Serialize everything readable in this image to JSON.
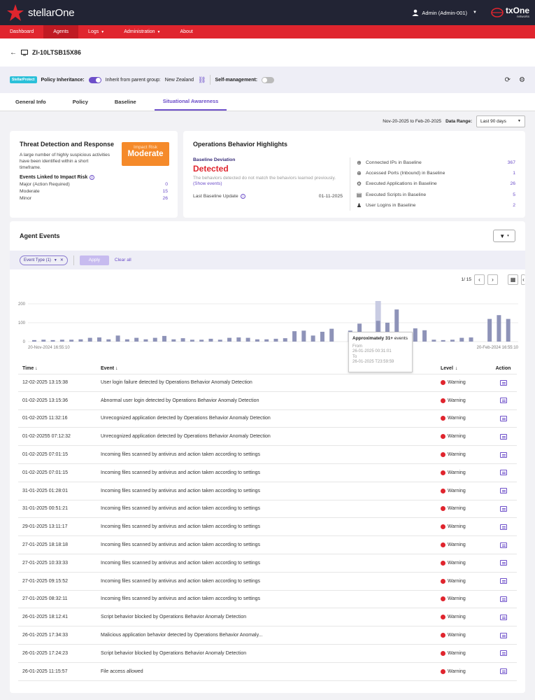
{
  "app": {
    "name": "stellarOne",
    "user": "Admin (Admin-001)",
    "partner_logo": "txOne",
    "partner_sub": "networks"
  },
  "nav": [
    {
      "label": "Dashboard",
      "caret": false,
      "active": false
    },
    {
      "label": "Agents",
      "caret": false,
      "active": true
    },
    {
      "label": "Logs",
      "caret": true,
      "active": false
    },
    {
      "label": "Administration",
      "caret": true,
      "active": false
    },
    {
      "label": "About",
      "caret": false,
      "active": false
    }
  ],
  "device": {
    "name": "ZI-10LTSB15X86"
  },
  "policy_bar": {
    "badge": "StellarProtect",
    "inheritance_label": "Policy Inheritance:",
    "inherit_text": "Inherit from parent group:",
    "group": "New Zealand",
    "self_mgmt_label": "Self-management:"
  },
  "tabs": [
    {
      "label": "General Info",
      "active": false
    },
    {
      "label": "Policy",
      "active": false
    },
    {
      "label": "Baseline",
      "active": false
    },
    {
      "label": "Situational Awareness",
      "active": true
    }
  ],
  "date_range": {
    "range_text": "Nov-20-2025 to Feb-20-2025",
    "label": "Data Range:",
    "selected": "Last 90 days"
  },
  "threat": {
    "title": "Threat Detection and Response",
    "description": "A large number of highly suspicious activities have been identified within a short timeframe.",
    "impact_label": "Impact Risk",
    "impact_value": "Moderate",
    "events_linked_label": "Events Linked to Impact Risk",
    "rows": [
      {
        "label": "Major (Action Required)",
        "value": "0"
      },
      {
        "label": "Moderate",
        "value": "15"
      },
      {
        "label": "Minor",
        "value": "26"
      }
    ]
  },
  "ops": {
    "title": "Operations Behavior Highlights",
    "deviation_label": "Baseline Deviation",
    "deviation_value": "Detected",
    "deviation_desc": "The behaviors detected do not match the behaviors learned previously.",
    "show_events": "(Show events)",
    "last_update_label": "Last Baseline Update",
    "last_update_value": "01-11-2025",
    "stats": [
      {
        "icon": "globe-icon",
        "label": "Connected IPs in Baseline",
        "value": "367"
      },
      {
        "icon": "globe-icon",
        "label": "Accessed Ports (Inbound) in Baseline",
        "value": "1"
      },
      {
        "icon": "gears-icon",
        "label": "Executed Applications in Baseline",
        "value": "26"
      },
      {
        "icon": "script-icon",
        "label": "Executed Scripts in Baseline",
        "value": "5"
      },
      {
        "icon": "user-icon",
        "label": "User Logins in Baseline",
        "value": "2"
      }
    ]
  },
  "events": {
    "title": "Agent Events",
    "chip": "Event Type (1)",
    "apply": "Apply",
    "clear_all": "Clear all",
    "page": "1/ 15",
    "columns": {
      "time": "Time",
      "event": "Event",
      "level": "Level",
      "action": "Action"
    },
    "rows": [
      {
        "time": "12-02-2025 13:15:38",
        "event": "User login failure detected by Operations Behavior Anomaly Detection",
        "level": "Warning"
      },
      {
        "time": "01-02-2025 13:15:36",
        "event": "Abnormal user login detected by Operations Behavior Anomaly Detection",
        "level": "Warning"
      },
      {
        "time": "01-02-2025 11:32:16",
        "event": "Unrecognized application detected by Operations Behavior Anomaly Detection",
        "level": "Warning"
      },
      {
        "time": "01-02-20255 07:12:32",
        "event": "Unrecognized application detected by Operations Behavior Anomaly Detection",
        "level": "Warning"
      },
      {
        "time": "01-02-2025 07:01:15",
        "event": "Incoming files scanned by antivirus and action taken according to settings",
        "level": "Warning"
      },
      {
        "time": "01-02-2025 07:01:15",
        "event": "Incoming files scanned by antivirus and action taken according to settings",
        "level": "Warning"
      },
      {
        "time": "31-01-2025 01:28:01",
        "event": "Incoming files scanned by antivirus and action taken according to settings",
        "level": "Warning"
      },
      {
        "time": "31-01-2025 00:51:21",
        "event": "Incoming files scanned by antivirus and action taken according to settings",
        "level": "Warning"
      },
      {
        "time": "29-01-2025 13:11:17",
        "event": "Incoming files scanned by antivirus and action taken according to settings",
        "level": "Warning"
      },
      {
        "time": "27-01-2025 18:18:18",
        "event": "Incoming files scanned by antivirus and action taken according to settings",
        "level": "Warning"
      },
      {
        "time": "27-01-2025 10:33:33",
        "event": "Incoming files scanned by antivirus and action taken according to settings",
        "level": "Warning"
      },
      {
        "time": "27-01-2025 09:15:52",
        "event": "Incoming files scanned by antivirus and action taken according to settings",
        "level": "Warning"
      },
      {
        "time": "27-01-2025 08:32:11",
        "event": "Incoming files scanned by antivirus and action taken according to settings",
        "level": "Warning"
      },
      {
        "time": "26-01-2025 18:12:41",
        "event": "Script behavior blocked by Operations Behavior Anomaly Detection",
        "level": "Warning"
      },
      {
        "time": "26-01-2025 17:34:33",
        "event": "Malicious application behavior detected by Operations Behavior Anomaly...",
        "level": "Warning"
      },
      {
        "time": "26-01-2025 17:24:23",
        "event": "Script behavior blocked by Operations Behavior Anomaly Detection",
        "level": "Warning"
      },
      {
        "time": "26-01-2025 11:15:57",
        "event": "File access allowed",
        "level": "Warning"
      }
    ],
    "tooltip": {
      "title_bold": "Approximately 31+",
      "title_rest": " events",
      "from_label": "From",
      "from": "26-01-2025 00:31:01",
      "to_label": "To",
      "to": "26-01-2025 T23:59:59"
    }
  },
  "chart_data": {
    "type": "bar",
    "x_start_label": "20-Nov-2024 16:55:10",
    "x_end_label": "20-Feb-2024 16:55:10",
    "yticks": [
      0,
      100,
      200
    ],
    "ylim": [
      0,
      200
    ],
    "highlight_index": 37,
    "values": [
      8,
      10,
      8,
      10,
      10,
      12,
      20,
      22,
      12,
      32,
      12,
      20,
      12,
      20,
      30,
      12,
      18,
      10,
      10,
      15,
      10,
      20,
      22,
      20,
      12,
      12,
      15,
      18,
      55,
      58,
      32,
      52,
      68,
      0,
      58,
      95,
      0,
      110,
      100,
      170,
      0,
      70,
      60,
      10,
      8,
      10,
      20,
      22,
      0,
      120,
      140,
      120
    ]
  },
  "colors": {
    "brand_red": "#e0252e",
    "accent_purple": "#6d4fc9",
    "topbar": "#222434",
    "impact_orange": "#f58a2a",
    "bar": "#8e93b8",
    "bar_highlight": "#c9cce3"
  }
}
